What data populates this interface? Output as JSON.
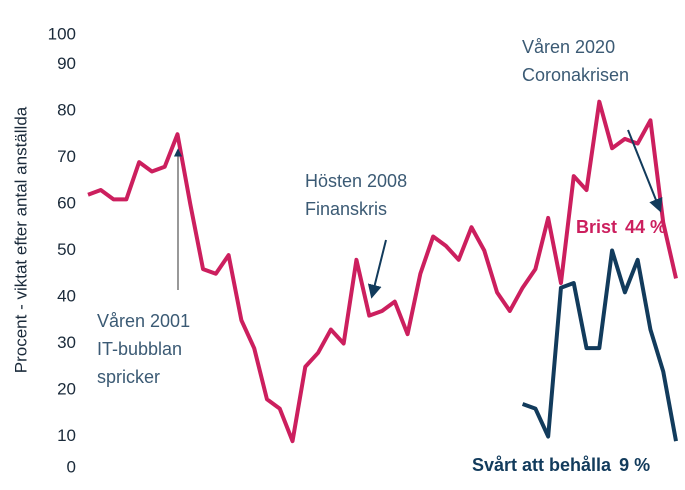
{
  "chart_data": {
    "type": "line",
    "y_label": "Procent - viktat efter antal anställda",
    "categories": [
      null,
      null,
      null,
      null,
      null,
      null,
      null,
      null,
      null,
      null,
      null,
      null,
      null,
      null,
      null,
      null,
      null,
      null,
      null,
      null,
      null,
      null,
      null,
      null,
      null,
      null,
      null,
      null,
      null,
      null,
      null,
      null,
      null,
      null,
      null,
      null,
      null,
      null,
      null,
      null,
      null,
      null,
      null,
      null,
      null,
      null,
      null
    ],
    "series": [
      {
        "name": "Brist",
        "color": "#cc1f5e",
        "values": [
          62,
          63,
          61,
          61,
          69,
          67,
          68,
          75,
          60,
          46,
          45,
          49,
          35,
          29,
          18,
          16,
          9,
          25,
          28,
          33,
          30,
          48,
          36,
          37,
          39,
          32,
          45,
          53,
          51,
          48,
          55,
          50,
          41,
          37,
          42,
          46,
          57,
          43,
          66,
          63,
          82,
          72,
          74,
          73,
          78,
          56,
          44
        ],
        "value_labels": [
          null,
          null,
          null,
          null,
          null,
          null,
          null,
          null,
          null,
          null,
          null,
          null,
          null,
          null,
          null,
          null,
          null,
          null,
          null,
          null,
          null,
          null,
          null,
          null,
          null,
          null,
          null,
          null,
          null,
          null,
          null,
          null,
          null,
          null,
          null,
          null,
          null,
          null,
          null,
          null,
          null,
          null,
          null,
          null,
          null,
          null,
          "44 %"
        ]
      },
      {
        "name": "Svårt att behålla",
        "color": "#123b5c",
        "values": [
          null,
          null,
          null,
          null,
          null,
          null,
          null,
          null,
          null,
          null,
          null,
          null,
          null,
          null,
          null,
          null,
          null,
          null,
          null,
          null,
          null,
          null,
          null,
          null,
          null,
          null,
          null,
          null,
          null,
          null,
          null,
          null,
          null,
          null,
          17,
          16,
          10,
          42,
          43,
          29,
          29,
          50,
          41,
          48,
          33,
          24,
          9
        ],
        "value_labels": [
          null,
          null,
          null,
          null,
          null,
          null,
          null,
          null,
          null,
          null,
          null,
          null,
          null,
          null,
          null,
          null,
          null,
          null,
          null,
          null,
          null,
          null,
          null,
          null,
          null,
          null,
          null,
          null,
          null,
          null,
          null,
          null,
          null,
          null,
          null,
          null,
          null,
          null,
          null,
          null,
          null,
          null,
          null,
          null,
          null,
          null,
          "9 %"
        ]
      }
    ],
    "ylim": [
      0,
      100
    ],
    "yticks": [
      0,
      10,
      20,
      30,
      40,
      50,
      60,
      70,
      80,
      90,
      100
    ],
    "grid": false,
    "annotations": [
      {
        "lines": [
          "Våren 2001",
          "IT-bubblan",
          "spricker"
        ]
      },
      {
        "lines": [
          "Hösten 2008",
          "Finanskris"
        ]
      },
      {
        "lines": [
          "Våren 2020",
          "Coronakrisen"
        ]
      }
    ]
  }
}
